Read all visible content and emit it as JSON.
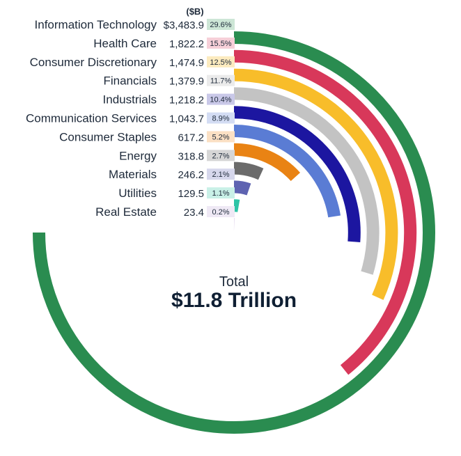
{
  "chart_data": {
    "type": "radial-bar",
    "unit_label": "($B)",
    "total_label": "Total",
    "total_value": "$11.8 Trillion",
    "max_value": 3483.9,
    "series": [
      {
        "name": "Information Technology",
        "value": 3483.9,
        "value_label": "$3,483.9",
        "pct": "29.6%",
        "color": "#2a8c50",
        "tag_color": "#cde6d6"
      },
      {
        "name": "Health Care",
        "value": 1822.2,
        "value_label": "1,822.2",
        "pct": "15.5%",
        "color": "#d8385a",
        "tag_color": "#f6cfd8"
      },
      {
        "name": "Consumer Discretionary",
        "value": 1474.9,
        "value_label": "1,474.9",
        "pct": "12.5%",
        "color": "#f8bd2a",
        "tag_color": "#fcebbf"
      },
      {
        "name": "Financials",
        "value": 1379.9,
        "value_label": "1,379.9",
        "pct": "11.7%",
        "color": "#c3c3c3",
        "tag_color": "#ebebeb"
      },
      {
        "name": "Industrials",
        "value": 1218.2,
        "value_label": "1,218.2",
        "pct": "10.4%",
        "color": "#1c16a0",
        "tag_color": "#c9c8e8"
      },
      {
        "name": "Communication Services",
        "value": 1043.7,
        "value_label": "1,043.7",
        "pct": "8.9%",
        "color": "#5a7cd4",
        "tag_color": "#d3dcf3"
      },
      {
        "name": "Consumer Staples",
        "value": 617.2,
        "value_label": "617.2",
        "pct": "5.2%",
        "color": "#e98314",
        "tag_color": "#fbe0c4"
      },
      {
        "name": "Energy",
        "value": 318.8,
        "value_label": "318.8",
        "pct": "2.7%",
        "color": "#6b6b6b",
        "tag_color": "#d6d6d6"
      },
      {
        "name": "Materials",
        "value": 246.2,
        "value_label": "246.2",
        "pct": "2.1%",
        "color": "#5e63b1",
        "tag_color": "#d6d7ec"
      },
      {
        "name": "Utilities",
        "value": 129.5,
        "value_label": "129.5",
        "pct": "1.1%",
        "color": "#2ec4a6",
        "tag_color": "#c9f0e7"
      },
      {
        "name": "Real Estate",
        "value": 23.4,
        "value_label": "23.4",
        "pct": "0.2%",
        "color": "#d8c8e6",
        "tag_color": "#efe9f5"
      }
    ]
  }
}
